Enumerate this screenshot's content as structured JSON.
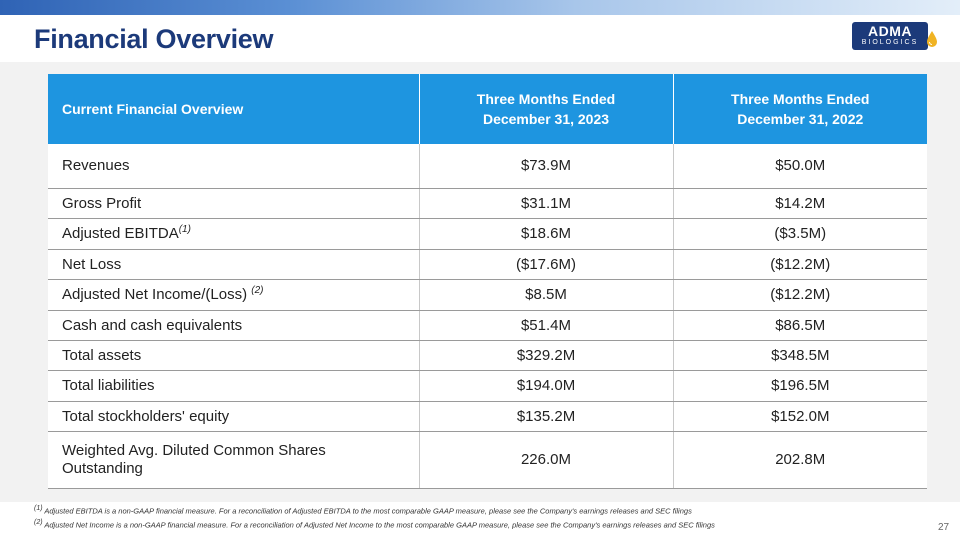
{
  "header": {
    "title": "Financial Overview",
    "logo": {
      "line1": "ADMA",
      "line2": "BIOLOGICS"
    }
  },
  "table": {
    "headers": [
      "Current Financial Overview",
      "Three Months Ended\nDecember 31, 2023",
      "Three Months Ended\nDecember 31, 2022"
    ],
    "rows": [
      {
        "label": "Revenues",
        "note": "",
        "v2023": "$73.9M",
        "v2022": "$50.0M"
      },
      {
        "label": "Gross Profit",
        "note": "",
        "v2023": "$31.1M",
        "v2022": "$14.2M"
      },
      {
        "label": "Adjusted EBITDA",
        "note": "(1)",
        "v2023": "$18.6M",
        "v2022": "($3.5M)"
      },
      {
        "label": "Net Loss",
        "note": "",
        "v2023": "($17.6M)",
        "v2022": "($12.2M)"
      },
      {
        "label": "Adjusted Net Income/(Loss) ",
        "note": "(2)",
        "v2023": "$8.5M",
        "v2022": "($12.2M)"
      },
      {
        "label": "Cash and cash equivalents",
        "note": "",
        "v2023": "$51.4M",
        "v2022": "$86.5M"
      },
      {
        "label": "Total assets",
        "note": "",
        "v2023": "$329.2M",
        "v2022": "$348.5M"
      },
      {
        "label": "Total liabilities",
        "note": "",
        "v2023": "$194.0M",
        "v2022": "$196.5M"
      },
      {
        "label": "Total stockholders' equity",
        "note": "",
        "v2023": "$135.2M",
        "v2022": "$152.0M"
      },
      {
        "label": "Weighted Avg. Diluted Common Shares Outstanding",
        "note": "",
        "v2023": "226.0M",
        "v2022": "202.8M"
      }
    ]
  },
  "footnotes": [
    {
      "mark": "(1)",
      "text": "Adjusted EBITDA is a non-GAAP financial measure. For a reconciliation of Adjusted EBITDA to the most comparable GAAP measure, please see the Company's earnings releases and SEC filings"
    },
    {
      "mark": "(2)",
      "text": "Adjusted Net Income is a non-GAAP financial measure. For a reconciliation of Adjusted Net Income to the most comparable GAAP measure, please see the Company's earnings releases and SEC filings"
    }
  ],
  "page_number": "27",
  "colors": {
    "title": "#1c3a7a",
    "header_fill": "#1e95e0",
    "logo_fill": "#1c3a7a",
    "logo_drop": "#f0b323"
  }
}
